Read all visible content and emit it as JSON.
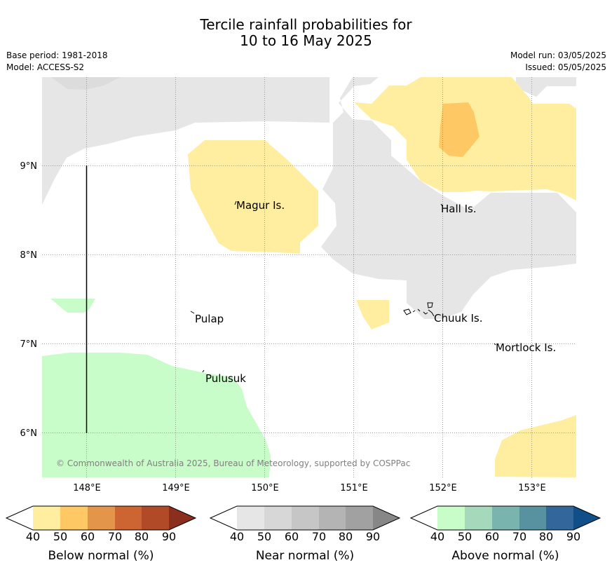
{
  "header": {
    "title_line1": "Tercile rainfall probabilities for",
    "title_line2": "10 to 16 May 2025",
    "base_period": "Base period: 1981-2018",
    "model": "Model: ACCESS-S2",
    "model_run": "Model run: 03/05/2025",
    "issued": "Issued: 05/05/2025"
  },
  "map": {
    "lon_ticks": [
      "148°E",
      "149°E",
      "150°E",
      "151°E",
      "152°E",
      "153°E"
    ],
    "lat_ticks": [
      "9°N",
      "8°N",
      "7°N",
      "6°N"
    ],
    "places": [
      {
        "name": "Magur Is."
      },
      {
        "name": "Hall Is."
      },
      {
        "name": "Pulap"
      },
      {
        "name": "Chuuk Is."
      },
      {
        "name": "Mortlock Is."
      },
      {
        "name": "Pulusuk"
      }
    ],
    "credit": "© Commonwealth of Australia 2025, Bureau of Meteorology, supported by COSPPac"
  },
  "colorbars": [
    {
      "label": "Below normal (%)",
      "ticks": [
        "40",
        "50",
        "60",
        "70",
        "80",
        "90"
      ],
      "colors": [
        "#ffffff",
        "#ffeda0",
        "#fec964",
        "#e3954a",
        "#cd6532",
        "#b04a27",
        "#8c2e1e"
      ]
    },
    {
      "label": "Near normal (%)",
      "ticks": [
        "40",
        "50",
        "60",
        "70",
        "80",
        "90"
      ],
      "colors": [
        "#ffffff",
        "#e6e6e6",
        "#d7d7d7",
        "#c6c6c6",
        "#b4b4b4",
        "#a1a1a1",
        "#878787"
      ]
    },
    {
      "label": "Above normal (%)",
      "ticks": [
        "40",
        "50",
        "60",
        "70",
        "80",
        "90"
      ],
      "colors": [
        "#ffffff",
        "#c8fcc8",
        "#a6d8bc",
        "#7ab4ae",
        "#5892a0",
        "#33669a",
        "#114f88"
      ]
    }
  ]
}
